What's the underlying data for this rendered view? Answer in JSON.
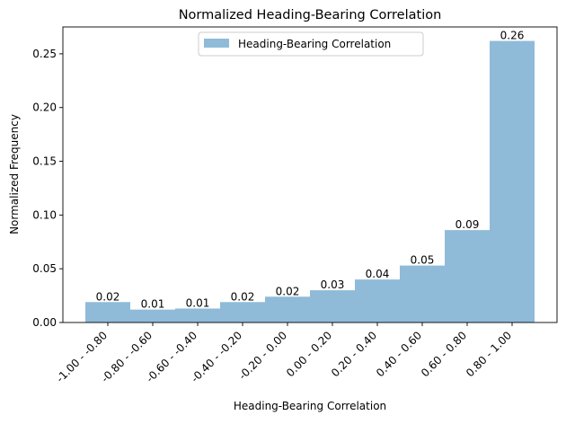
{
  "chart_data": {
    "type": "bar",
    "title": "Normalized Heading-Bearing Correlation",
    "xlabel": "Heading-Bearing Correlation",
    "ylabel": "Normalized Frequency",
    "categories": [
      "-1.00 - -0.80",
      "-0.80 - -0.60",
      "-0.60 - -0.40",
      "-0.40 - -0.20",
      "-0.20 - 0.00",
      "0.00 - 0.20",
      "0.20 - 0.40",
      "0.40 - 0.60",
      "0.60 - 0.80",
      "0.80 - 1.00"
    ],
    "series": [
      {
        "name": "Heading-Bearing Correlation",
        "values": [
          0.019,
          0.012,
          0.013,
          0.019,
          0.024,
          0.03,
          0.04,
          0.053,
          0.086,
          0.262
        ],
        "data_labels": [
          "0.02",
          "0.01",
          "0.01",
          "0.02",
          "0.02",
          "0.03",
          "0.04",
          "0.05",
          "0.09",
          "0.26"
        ]
      }
    ],
    "ylim": [
      0,
      0.275
    ],
    "yticks": [
      0.0,
      0.05,
      0.1,
      0.15,
      0.2,
      0.25
    ],
    "ytick_labels": [
      "0.00",
      "0.05",
      "0.10",
      "0.15",
      "0.20",
      "0.25"
    ],
    "grid": false,
    "legend_position": "top-center",
    "colors": {
      "bar": "#8fbbd9",
      "legend_swatch": "#8fbbd9",
      "axis": "#000000",
      "legend_border": "#cccccc"
    }
  }
}
